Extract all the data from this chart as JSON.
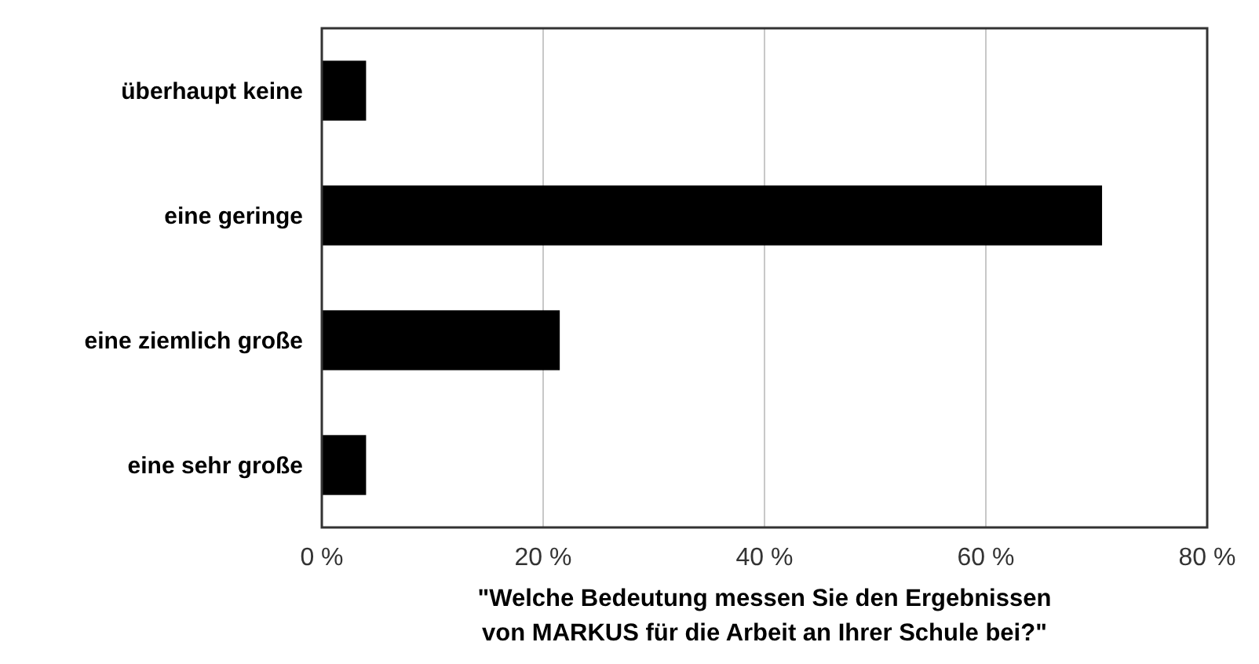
{
  "chart_data": {
    "type": "bar",
    "orientation": "horizontal",
    "categories": [
      "überhaupt keine",
      "eine geringe",
      "eine ziemlich große",
      "eine sehr große"
    ],
    "values": [
      4,
      70.5,
      21.5,
      4
    ],
    "color": "#000000",
    "xlim": [
      0,
      80
    ],
    "xticks": [
      {
        "value": 0,
        "label": "0 %"
      },
      {
        "value": 20,
        "label": "20 %"
      },
      {
        "value": 40,
        "label": "40 %"
      },
      {
        "value": 60,
        "label": "60 %"
      },
      {
        "value": 80,
        "label": "80 %"
      }
    ],
    "xlabel": "\"Welche Bedeutung messen Sie den Ergebnissen\nvon MARKUS für die Arbeit an Ihrer Schule bei?\"",
    "grid": "x"
  }
}
